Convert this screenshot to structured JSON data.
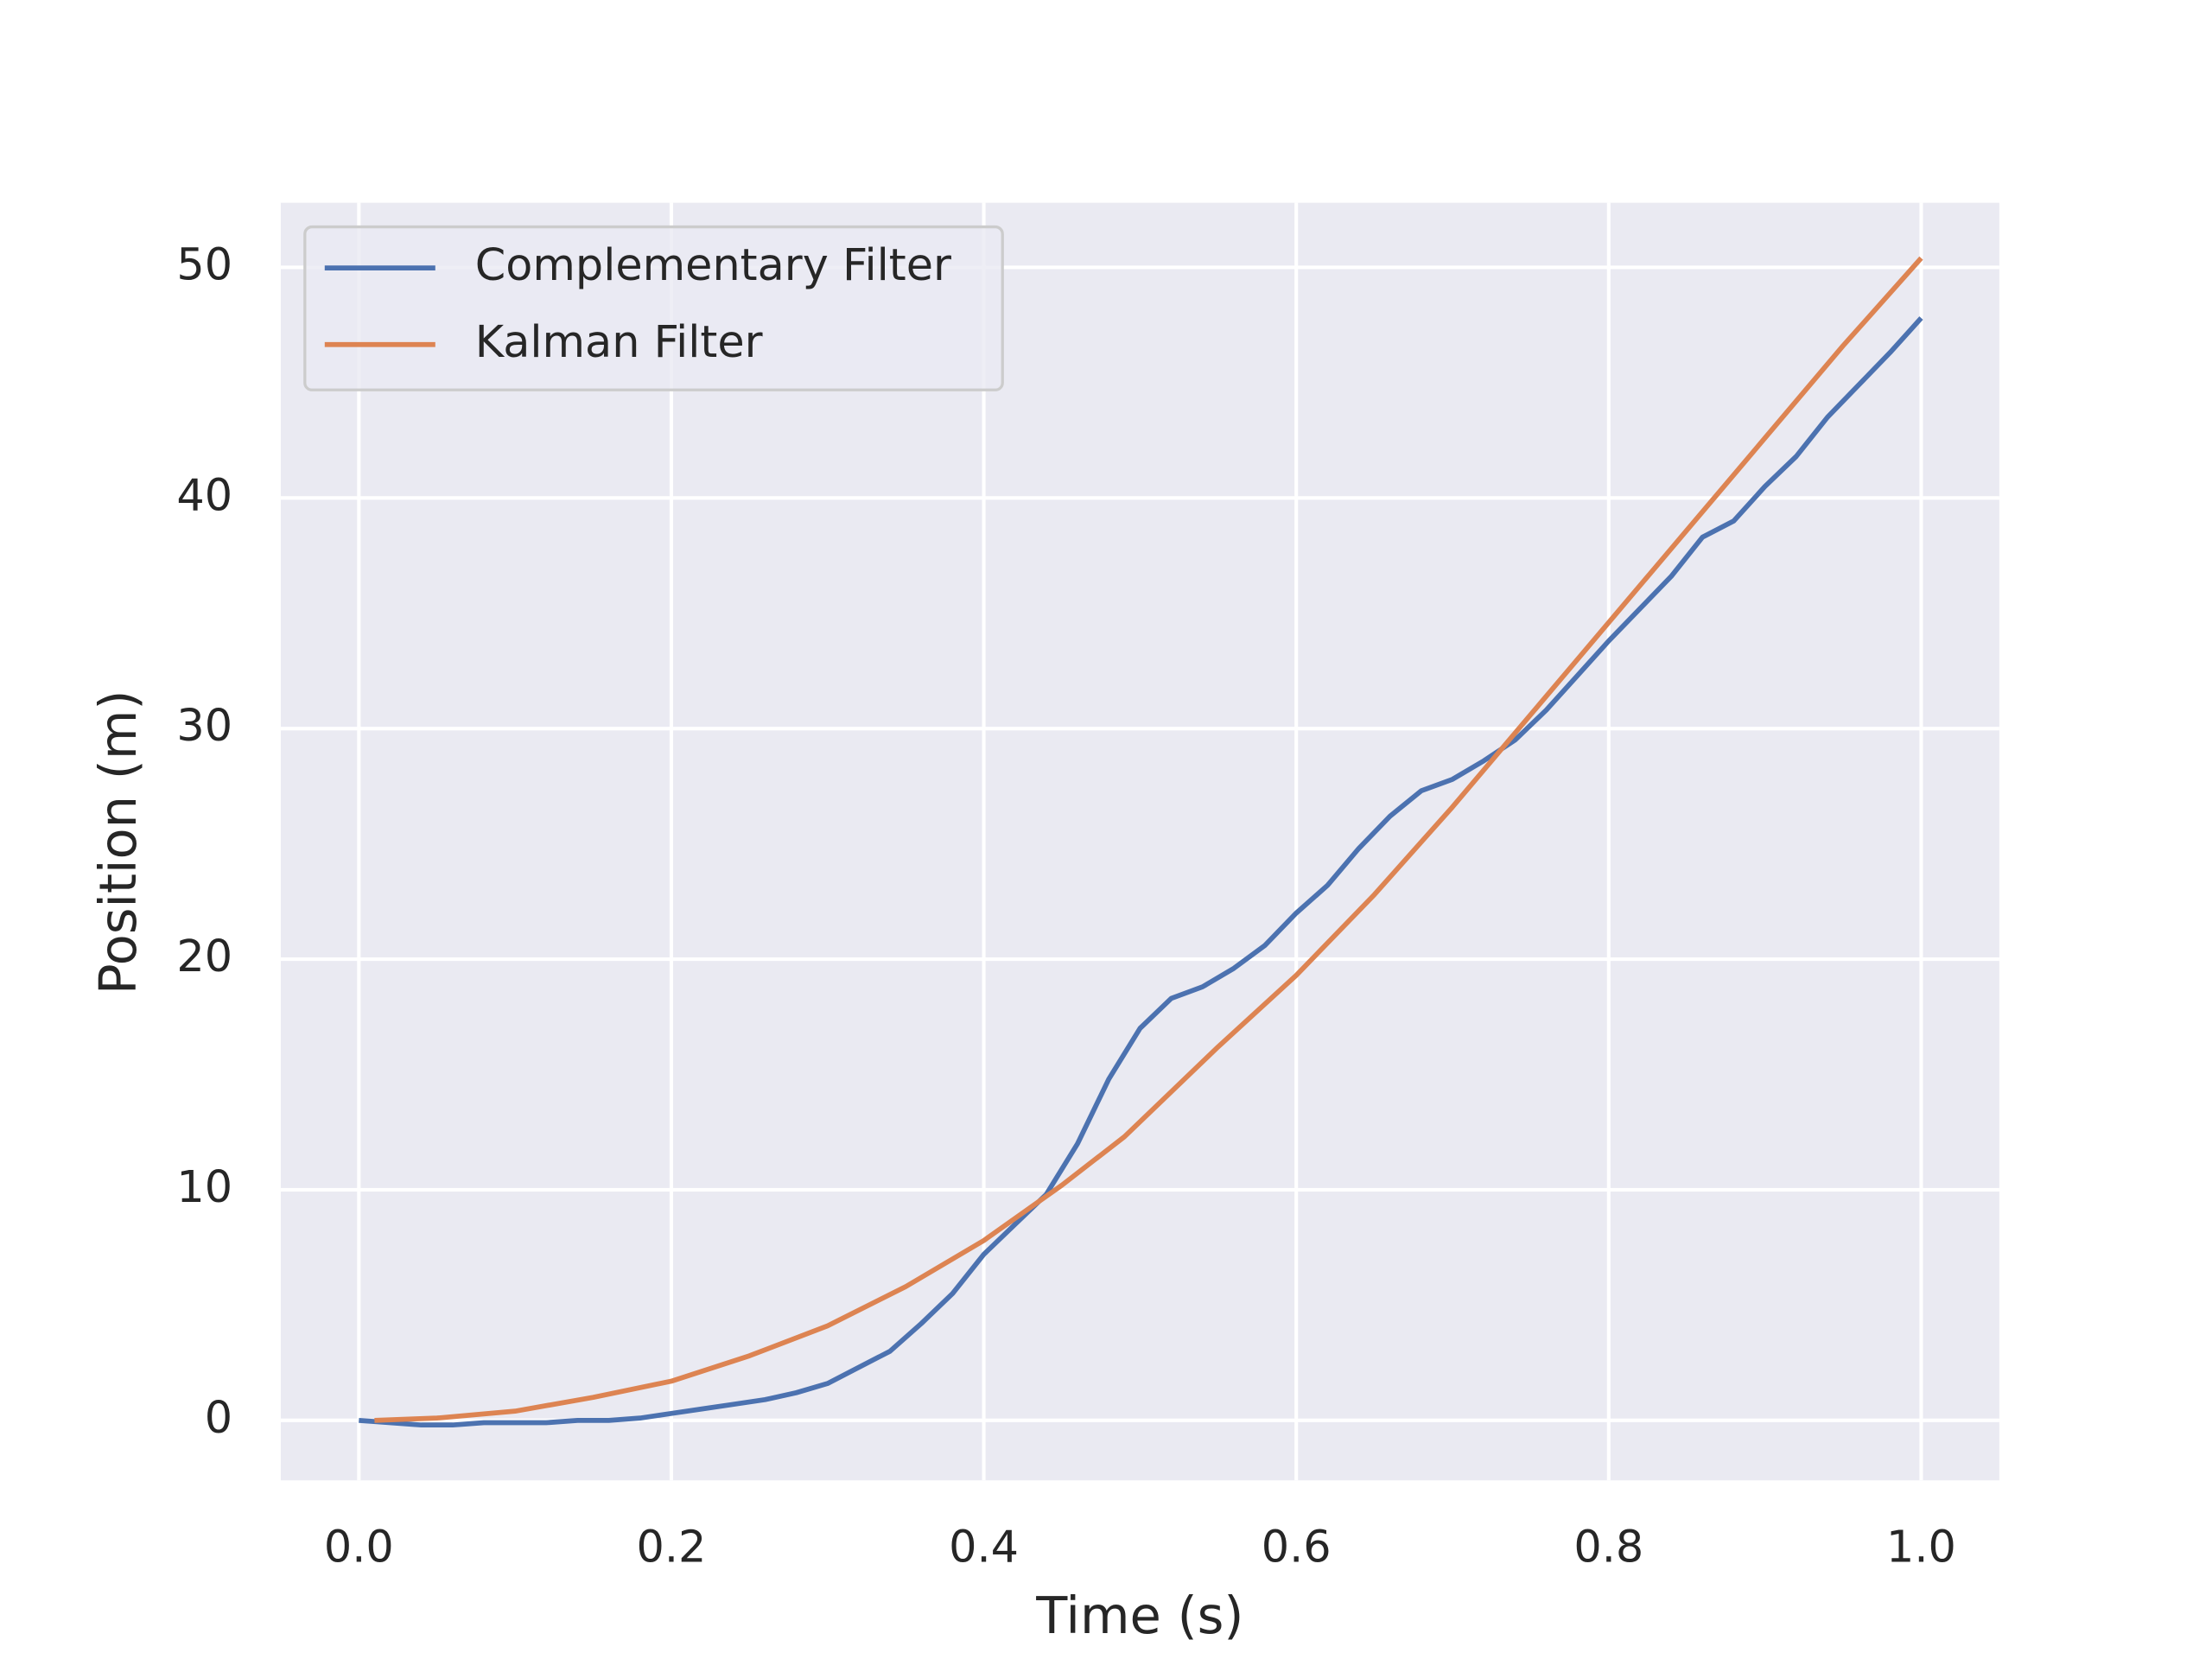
{
  "chart_data": {
    "type": "line",
    "xlabel": "Time (s)",
    "ylabel": "Position (m)",
    "xlim": [
      -0.05,
      1.05
    ],
    "ylim": [
      -2.6,
      52.8
    ],
    "xticks": [
      {
        "value": 0,
        "label": "0.0"
      },
      0.2,
      0.4,
      0.6,
      0.8,
      {
        "value": 1,
        "label": "1.0"
      }
    ],
    "yticks": [
      0,
      10,
      20,
      30,
      40,
      50
    ],
    "grid": true,
    "legend": "upper left",
    "series": [
      {
        "name": "Complementary Filter",
        "color": "#4c72b0",
        "x": [
          0,
          0.02,
          0.04,
          0.06,
          0.08,
          0.1,
          0.12,
          0.14,
          0.16,
          0.18,
          0.2,
          0.22,
          0.24,
          0.26,
          0.28,
          0.3,
          0.32,
          0.34,
          0.36,
          0.38,
          0.4,
          0.42,
          0.44,
          0.46,
          0.48,
          0.5,
          0.52,
          0.54,
          0.56,
          0.58,
          0.6,
          0.62,
          0.64,
          0.66,
          0.68,
          0.7,
          0.72,
          0.74,
          0.76,
          0.78,
          0.8,
          0.82,
          0.84,
          0.86,
          0.88,
          0.9,
          0.92,
          0.94,
          0.96,
          0.98,
          1
        ],
        "values": [
          0,
          -0.1,
          -0.2,
          -0.2,
          -0.1,
          -0.1,
          -0.1,
          0,
          0,
          0.1,
          0.3,
          0.5,
          0.7,
          0.9,
          1.2,
          1.6,
          2.3,
          3.0,
          4.2,
          5.5,
          7.2,
          8.5,
          9.8,
          12.0,
          14.8,
          17.0,
          18.3,
          18.8,
          19.6,
          20.6,
          22.0,
          23.2,
          24.8,
          26.2,
          27.3,
          27.8,
          28.6,
          29.5,
          30.8,
          32.3,
          33.8,
          35.2,
          36.6,
          38.3,
          39.0,
          40.5,
          41.8,
          43.5,
          44.9,
          46.3,
          47.8
        ]
      },
      {
        "name": "Kalman Filter",
        "color": "#dd8452",
        "x": [
          0.01,
          0.05,
          0.1,
          0.15,
          0.2,
          0.25,
          0.3,
          0.35,
          0.4,
          0.45,
          0.49,
          0.55,
          0.6,
          0.65,
          0.7,
          0.75,
          0.8,
          0.85,
          0.9,
          0.95,
          1
        ],
        "values": [
          0,
          0.1,
          0.4,
          1.0,
          1.7,
          2.8,
          4.1,
          5.8,
          7.8,
          10.2,
          12.3,
          16.2,
          19.3,
          22.8,
          26.6,
          30.6,
          34.6,
          38.6,
          42.6,
          46.6,
          50.4
        ]
      }
    ]
  }
}
